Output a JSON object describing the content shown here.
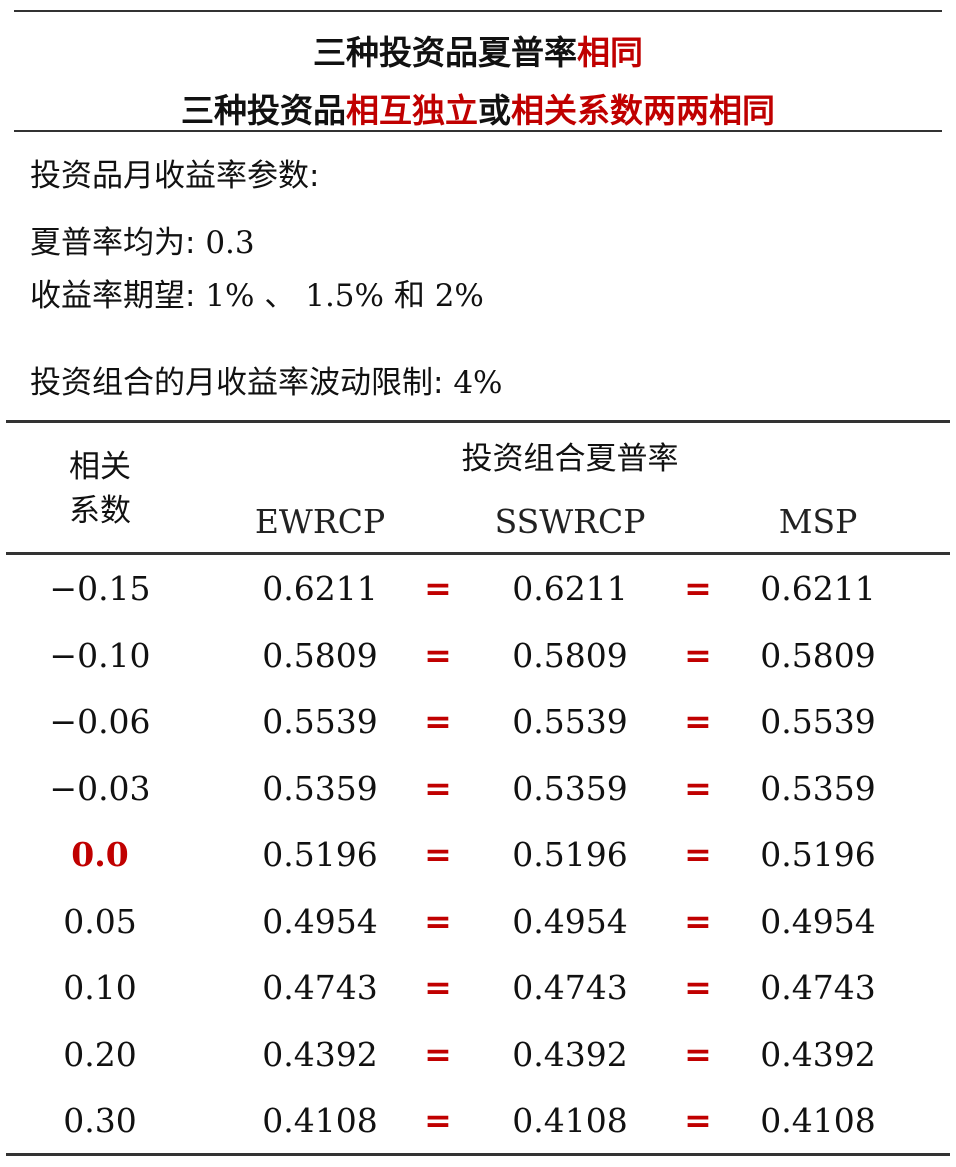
{
  "title": {
    "line1": {
      "black": "三种投资品夏普率",
      "red": "相同"
    },
    "line2": {
      "black1": "三种投资品",
      "red1": "相互独立",
      "black2": "或",
      "red2": "相关系数两两相同"
    }
  },
  "params": {
    "heading": "投资品月收益率参数:",
    "sharpe_label": "夏普率均为:",
    "sharpe_value": "0.3",
    "return_label": "收益率期望:",
    "return_value_1": "1%",
    "return_sep": "、",
    "return_value_2": "1.5%",
    "return_and": "和",
    "return_value_3": "2%",
    "vol_label": "投资组合的月收益率波动限制:",
    "vol_value": "4%"
  },
  "table": {
    "corr_header_line1": "相关",
    "corr_header_line2": "系数",
    "group_header": "投资组合夏普率",
    "columns": [
      "EWRCP",
      "SSWRCP",
      "MSP"
    ],
    "eq_symbol": "=",
    "rows": [
      {
        "corr": "−0.15",
        "a": "0.6211",
        "b": "0.6211",
        "c": "0.6211",
        "highlight": false
      },
      {
        "corr": "−0.10",
        "a": "0.5809",
        "b": "0.5809",
        "c": "0.5809",
        "highlight": false
      },
      {
        "corr": "−0.06",
        "a": "0.5539",
        "b": "0.5539",
        "c": "0.5539",
        "highlight": false
      },
      {
        "corr": "−0.03",
        "a": "0.5359",
        "b": "0.5359",
        "c": "0.5359",
        "highlight": false
      },
      {
        "corr": "0.0",
        "a": "0.5196",
        "b": "0.5196",
        "c": "0.5196",
        "highlight": true
      },
      {
        "corr": "0.05",
        "a": "0.4954",
        "b": "0.4954",
        "c": "0.4954",
        "highlight": false
      },
      {
        "corr": "0.10",
        "a": "0.4743",
        "b": "0.4743",
        "c": "0.4743",
        "highlight": false
      },
      {
        "corr": "0.20",
        "a": "0.4392",
        "b": "0.4392",
        "c": "0.4392",
        "highlight": false
      },
      {
        "corr": "0.30",
        "a": "0.4108",
        "b": "0.4108",
        "c": "0.4108",
        "highlight": false
      }
    ]
  },
  "colors": {
    "accent_red": "#c00000",
    "text": "#111111",
    "rule": "#333333"
  }
}
